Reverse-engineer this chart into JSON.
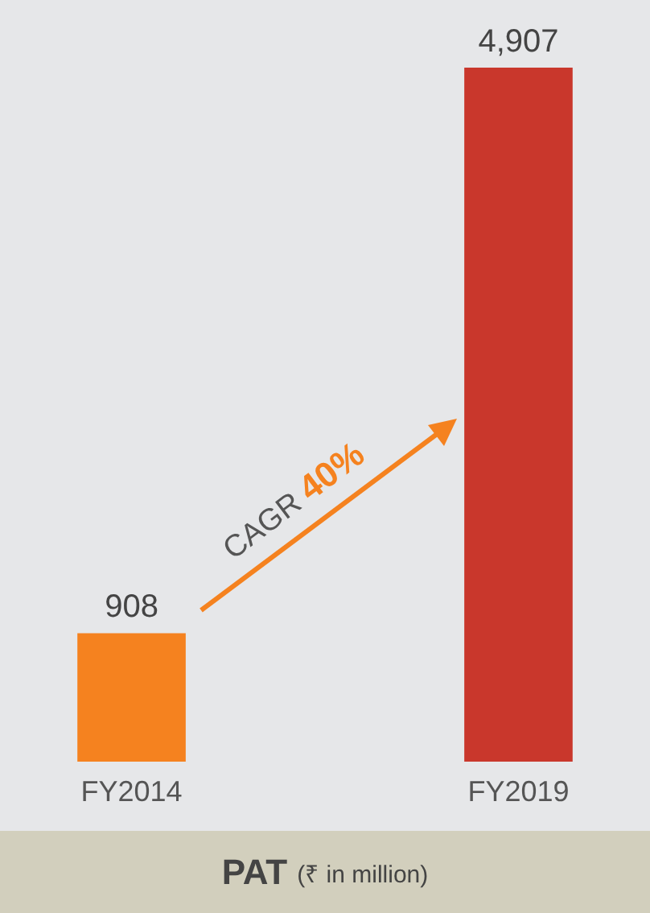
{
  "chart_data": {
    "type": "bar",
    "title": "PAT (₹ in million)",
    "categories": [
      "FY2014",
      "FY2019"
    ],
    "values": [
      908,
      4907
    ],
    "colors": [
      "#f5821f",
      "#c9372c"
    ],
    "value_labels": [
      "908",
      "4,907"
    ],
    "annotations": [
      "CAGR 40%"
    ]
  }
}
